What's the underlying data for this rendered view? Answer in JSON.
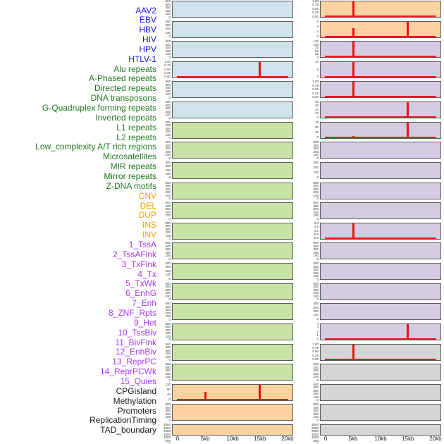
{
  "chart_data": {
    "type": "line",
    "title": "",
    "description_visible_text_only": "44 genomic feature tracks, two columns of 22 subplots",
    "x": {
      "ticks": [
        "0",
        "5kb",
        "10kb",
        "15kb",
        "20kb"
      ],
      "tick_kb": [
        0,
        5,
        10,
        15,
        20
      ],
      "range_kb": [
        0,
        20
      ]
    },
    "colors": {
      "spike": "#ea1310",
      "baseline": "#df2117",
      "box_border": "#5c5c5c",
      "tick_text": "#3a3a3a",
      "axis_text": "#1c1c1c",
      "background": "#ffffff",
      "groups": {
        "virus": {
          "label": "#1414e6",
          "bg": "#cee3eb"
        },
        "repeats": {
          "label": "#1f7a1f",
          "bg": "#c9e2a5"
        },
        "sv": {
          "label": "#f0a202",
          "bg": "#fcd2a0"
        },
        "chromhmm": {
          "label": "#a638f0",
          "bg": "#d6cce2"
        },
        "other": {
          "label": "#1a1a1a",
          "bg": "#d5d5d5"
        }
      }
    },
    "tracks": [
      {
        "label": "AAV2",
        "group": "virus",
        "column": "left",
        "yticks": [
          "500",
          "400",
          "300",
          "200",
          "100",
          "0"
        ],
        "spikes": [],
        "baseline": false
      },
      {
        "label": "EBV",
        "group": "virus",
        "column": "left",
        "yticks": [
          "400",
          "300",
          "200",
          "100",
          "0"
        ],
        "spikes": [],
        "baseline": false
      },
      {
        "label": "HBV",
        "group": "virus",
        "column": "left",
        "yticks": [
          "500",
          "400",
          "300",
          "200",
          "100",
          "0"
        ],
        "spikes": [],
        "baseline": false
      },
      {
        "label": "HIV",
        "group": "virus",
        "column": "left",
        "yticks": [
          "1.00",
          "0.75",
          "0.50",
          "0.25",
          "0.00"
        ],
        "spikes": [
          {
            "kb": 15,
            "frac": 1.0
          }
        ],
        "baseline": true
      },
      {
        "label": "HPV",
        "group": "virus",
        "column": "left",
        "yticks": [
          "500",
          "400",
          "300",
          "200",
          "100",
          "0"
        ],
        "spikes": [],
        "baseline": false
      },
      {
        "label": "HTLV-1",
        "group": "virus",
        "column": "left",
        "yticks": [
          "500",
          "400",
          "300",
          "200",
          "100",
          "0"
        ],
        "spikes": [],
        "baseline": false
      },
      {
        "label": "Alu repeats",
        "group": "repeats",
        "column": "left",
        "yticks": [
          "500",
          "400",
          "300",
          "200",
          "100",
          "0"
        ],
        "spikes": [],
        "baseline": false
      },
      {
        "label": "A-Phased repeats",
        "group": "repeats",
        "column": "left",
        "yticks": [
          "500",
          "400",
          "300",
          "200",
          "100",
          "0"
        ],
        "spikes": [],
        "baseline": false
      },
      {
        "label": "Directed repeats",
        "group": "repeats",
        "column": "left",
        "yticks": [
          "400",
          "300",
          "200",
          "100",
          "0"
        ],
        "spikes": [],
        "baseline": false
      },
      {
        "label": "DNA transposons",
        "group": "repeats",
        "column": "left",
        "yticks": [
          "500",
          "400",
          "300",
          "200",
          "100",
          "0"
        ],
        "spikes": [],
        "baseline": false
      },
      {
        "label": "G-Quadruplex forming repeats",
        "group": "repeats",
        "column": "left",
        "yticks": [
          "500",
          "400",
          "300",
          "200",
          "100",
          "0"
        ],
        "spikes": [],
        "baseline": false
      },
      {
        "label": "Inverted repeats",
        "group": "repeats",
        "column": "left",
        "yticks": [
          "500",
          "400",
          "300",
          "200",
          "100",
          "0"
        ],
        "spikes": [],
        "baseline": false
      },
      {
        "label": "L1 repeats",
        "group": "repeats",
        "column": "left",
        "yticks": [
          "500",
          "400",
          "300",
          "200",
          "100",
          "0"
        ],
        "spikes": [],
        "baseline": false
      },
      {
        "label": "L2 repeats",
        "group": "repeats",
        "column": "left",
        "yticks": [
          "400",
          "300",
          "200",
          "100",
          "0"
        ],
        "spikes": [],
        "baseline": false
      },
      {
        "label": "Low_complexity A/T rich regions",
        "group": "repeats",
        "column": "left",
        "yticks": [
          "500",
          "400",
          "300",
          "200",
          "100",
          "0"
        ],
        "spikes": [],
        "baseline": false
      },
      {
        "label": "Microsatellites",
        "group": "repeats",
        "column": "left",
        "yticks": [
          "500",
          "400",
          "300",
          "200",
          "100",
          "0"
        ],
        "spikes": [],
        "baseline": false
      },
      {
        "label": "MIR repeats",
        "group": "repeats",
        "column": "left",
        "yticks": [
          "500",
          "400",
          "300",
          "200",
          "100",
          "0"
        ],
        "spikes": [],
        "baseline": false
      },
      {
        "label": "Mirror repeats",
        "group": "repeats",
        "column": "left",
        "yticks": [
          "500",
          "400",
          "300",
          "200",
          "100",
          "0"
        ],
        "spikes": [],
        "baseline": false
      },
      {
        "label": "Z-DNA motifs",
        "group": "repeats",
        "column": "left",
        "yticks": [
          "500",
          "400",
          "300",
          "200",
          "100",
          "0"
        ],
        "spikes": [],
        "baseline": false
      },
      {
        "label": "CNV",
        "group": "sv",
        "column": "left",
        "yticks": [
          "120",
          "80",
          "40",
          "0"
        ],
        "spikes": [
          {
            "kb": 5,
            "frac": 0.52
          },
          {
            "kb": 15,
            "frac": 1.0
          }
        ],
        "baseline": true
      },
      {
        "label": "DEL",
        "group": "sv",
        "column": "left",
        "yticks": [
          "500",
          "400",
          "300",
          "200",
          "100",
          "0"
        ],
        "spikes": [],
        "baseline": false
      },
      {
        "label": "DUP",
        "group": "sv",
        "column": "left",
        "yticks": [
          "3000",
          "2500",
          "2000",
          "1500",
          "1000",
          "500",
          "0"
        ],
        "spikes": [],
        "baseline": false
      },
      {
        "label": "INS",
        "group": "sv",
        "column": "right",
        "yticks": [
          "1.00",
          "0.75",
          "0.50",
          "0.25",
          "0.00"
        ],
        "spikes": [
          {
            "kb": 5,
            "frac": 1.0
          }
        ],
        "baseline": true
      },
      {
        "label": "INV",
        "group": "sv",
        "column": "right",
        "yticks": [
          "6",
          "4",
          "2",
          "0"
        ],
        "spikes": [
          {
            "kb": 5,
            "frac": 0.58
          },
          {
            "kb": 15,
            "frac": 1.0
          }
        ],
        "baseline": true
      },
      {
        "label": "1_TssA",
        "group": "chromhmm",
        "column": "right",
        "yticks": [
          "125",
          "100",
          "75",
          "50",
          "25",
          "0"
        ],
        "spikes": [
          {
            "kb": 5,
            "frac": 1.0
          }
        ],
        "baseline": true
      },
      {
        "label": "2_TssAFlnk",
        "group": "chromhmm",
        "column": "right",
        "yticks": [
          "10",
          "5",
          "0"
        ],
        "spikes": [
          {
            "kb": 5,
            "frac": 1.0
          }
        ],
        "baseline": true
      },
      {
        "label": "3_TxFlnk",
        "group": "chromhmm",
        "column": "right",
        "yticks": [
          "1.00",
          "0.75",
          "0.50",
          "0.25",
          "0.00"
        ],
        "spikes": [
          {
            "kb": 5,
            "frac": 1.0
          }
        ],
        "baseline": true
      },
      {
        "label": "4_Tx",
        "group": "chromhmm",
        "column": "right",
        "yticks": [
          "40",
          "30",
          "20",
          "10",
          "0"
        ],
        "spikes": [
          {
            "kb": 15,
            "frac": 1.0
          }
        ],
        "baseline": true
      },
      {
        "label": "5_TxWk",
        "group": "chromhmm",
        "column": "right",
        "yticks": [
          "75",
          "50",
          "25",
          "0"
        ],
        "spikes": [
          {
            "kb": 5,
            "frac": 0.12
          },
          {
            "kb": 15,
            "frac": 1.0
          }
        ],
        "baseline": true
      },
      {
        "label": "6_EnhG",
        "group": "chromhmm",
        "column": "right",
        "yticks": [
          "500",
          "400",
          "300",
          "200",
          "100",
          "0"
        ],
        "spikes": [],
        "baseline": false
      },
      {
        "label": "7_Enh",
        "group": "chromhmm",
        "column": "right",
        "yticks": [
          "300",
          "200",
          "100",
          "0"
        ],
        "spikes": [],
        "baseline": false
      },
      {
        "label": "8_ZNF_Rpts",
        "group": "chromhmm",
        "column": "right",
        "yticks": [
          "500",
          "400",
          "300",
          "200",
          "100",
          "0"
        ],
        "spikes": [],
        "baseline": false
      },
      {
        "label": "9_Het",
        "group": "chromhmm",
        "column": "right",
        "yticks": [
          "500",
          "400",
          "300",
          "200",
          "100",
          "0"
        ],
        "spikes": [],
        "baseline": false
      },
      {
        "label": "10_TssBiv",
        "group": "chromhmm",
        "column": "right",
        "yticks": [
          "2.0",
          "1.5",
          "1.0",
          "0.5",
          "0.0"
        ],
        "spikes": [
          {
            "kb": 5,
            "frac": 1.0
          }
        ],
        "baseline": true
      },
      {
        "label": "11_BivFlnk",
        "group": "chromhmm",
        "column": "right",
        "yticks": [
          "500",
          "400",
          "300",
          "200",
          "100",
          "0"
        ],
        "spikes": [],
        "baseline": false
      },
      {
        "label": "12_EnhBiv",
        "group": "chromhmm",
        "column": "right",
        "yticks": [
          "500",
          "400",
          "300",
          "200",
          "100",
          "0"
        ],
        "spikes": [],
        "baseline": false
      },
      {
        "label": "13_ReprPC",
        "group": "chromhmm",
        "column": "right",
        "yticks": [
          "500",
          "400",
          "300",
          "200",
          "100",
          "0"
        ],
        "spikes": [],
        "baseline": false
      },
      {
        "label": "14_ReprPCWk",
        "group": "chromhmm",
        "column": "right",
        "yticks": [
          "400",
          "300",
          "200",
          "100",
          "0"
        ],
        "spikes": [],
        "baseline": false
      },
      {
        "label": "15_Quies",
        "group": "chromhmm",
        "column": "right",
        "yticks": [
          "4",
          "3",
          "2",
          "1",
          "0"
        ],
        "spikes": [
          {
            "kb": 15,
            "frac": 1.0
          }
        ],
        "baseline": true
      },
      {
        "label": "CPGisland",
        "group": "other",
        "column": "right",
        "yticks": [
          "1.00",
          "0.75",
          "0.50",
          "0.25",
          "0.00"
        ],
        "spikes": [
          {
            "kb": 5,
            "frac": 1.0
          }
        ],
        "baseline": true
      },
      {
        "label": "Methylation",
        "group": "other",
        "column": "right",
        "yticks": [
          "500",
          "400",
          "300",
          "200",
          "100",
          "0"
        ],
        "spikes": [],
        "baseline": false
      },
      {
        "label": "Promoters",
        "group": "other",
        "column": "right",
        "yticks": [
          "500",
          "400",
          "300",
          "200",
          "100",
          "0"
        ],
        "spikes": [],
        "baseline": false
      },
      {
        "label": "ReplicationTiming",
        "group": "other",
        "column": "right",
        "yticks": [
          "500",
          "400",
          "300",
          "200",
          "100",
          "0"
        ],
        "spikes": [],
        "baseline": false
      },
      {
        "label": "TAD_boundary",
        "group": "other",
        "column": "right",
        "yticks": [
          "3000",
          "2500",
          "2000",
          "1500",
          "1000",
          "500",
          "0"
        ],
        "spikes": [],
        "baseline": false
      }
    ]
  }
}
